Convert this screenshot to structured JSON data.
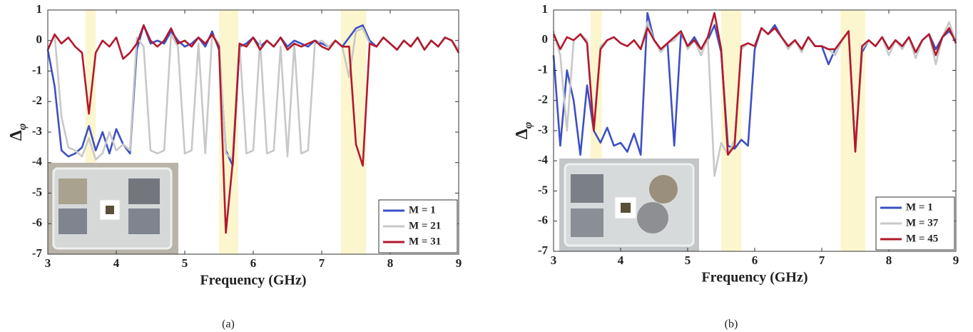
{
  "chart_data": [
    {
      "type": "line",
      "xlabel": "Frequency (GHz)",
      "ylabel": "Δ",
      "ylabel_sub": "φ",
      "caption": "(a)",
      "xlim": [
        3,
        9
      ],
      "ylim": [
        -7,
        1
      ],
      "xticks": [
        3,
        4,
        5,
        6,
        7,
        8,
        9
      ],
      "yticks": [
        -7,
        -6,
        -5,
        -4,
        -3,
        -2,
        -1,
        0,
        1
      ],
      "grid": false,
      "legend": "lower right",
      "band_color": "#fcf6cf",
      "highlight_bands": [
        [
          3.55,
          3.7
        ],
        [
          5.5,
          5.78
        ],
        [
          7.28,
          7.65
        ]
      ],
      "x": [
        3.0,
        3.1,
        3.2,
        3.3,
        3.4,
        3.5,
        3.6,
        3.7,
        3.8,
        3.9,
        4.0,
        4.1,
        4.2,
        4.3,
        4.4,
        4.5,
        4.6,
        4.7,
        4.8,
        4.9,
        5.0,
        5.1,
        5.2,
        5.3,
        5.4,
        5.5,
        5.6,
        5.7,
        5.8,
        5.9,
        6.0,
        6.1,
        6.2,
        6.3,
        6.4,
        6.5,
        6.6,
        6.7,
        6.8,
        6.9,
        7.0,
        7.1,
        7.2,
        7.3,
        7.4,
        7.5,
        7.6,
        7.7,
        7.8,
        7.9,
        8.0,
        8.1,
        8.2,
        8.3,
        8.4,
        8.5,
        8.6,
        8.7,
        8.8,
        8.9,
        9.0
      ],
      "series": [
        {
          "name": "M = 1",
          "color": "#3d50c3",
          "values": [
            -0.3,
            -1.5,
            -3.6,
            -3.8,
            -3.7,
            -3.5,
            -2.8,
            -3.6,
            -3.0,
            -3.7,
            -2.9,
            -3.4,
            -3.7,
            -0.3,
            0.5,
            -0.1,
            0.0,
            -0.1,
            0.3,
            0.0,
            -0.2,
            -0.1,
            0.1,
            -0.2,
            0.3,
            -0.3,
            -3.6,
            -4.1,
            -0.2,
            -0.1,
            0.1,
            -0.2,
            0.0,
            -0.2,
            0.1,
            -0.2,
            0.0,
            -0.1,
            -0.2,
            0.0,
            -0.1,
            -0.2,
            0.0,
            -0.2,
            0.1,
            0.4,
            0.5,
            0.0,
            -0.2,
            0.1,
            -0.1,
            -0.3,
            0.0,
            -0.2,
            0.1,
            -0.3,
            0.0,
            -0.2,
            0.1,
            0.0,
            -0.3
          ]
        },
        {
          "name": "M = 21",
          "color": "#c8c8c8",
          "values": [
            -0.3,
            0.2,
            -2.5,
            -3.5,
            -3.6,
            -3.8,
            -3.2,
            -3.9,
            -3.7,
            -3.0,
            -3.6,
            -3.4,
            -3.6,
            0.1,
            -0.2,
            -3.6,
            -3.7,
            -3.6,
            0.2,
            -0.2,
            -3.7,
            -3.6,
            -0.1,
            -3.7,
            0.2,
            -0.1,
            -3.7,
            -3.9,
            -0.1,
            -3.7,
            -3.6,
            0.0,
            -3.7,
            -3.6,
            -0.2,
            -3.8,
            -0.1,
            -3.7,
            -3.6,
            -0.1,
            0.0,
            -0.2,
            0.0,
            -0.2,
            -1.2,
            0.3,
            0.4,
            -0.1,
            -0.2,
            0.1,
            -0.1,
            -0.3,
            0.0,
            -0.2,
            0.1,
            -0.3,
            0.0,
            -0.2,
            0.1,
            0.0,
            -0.3
          ]
        },
        {
          "name": "M = 31",
          "color": "#b3182d",
          "values": [
            -0.3,
            0.2,
            -0.1,
            0.1,
            -0.2,
            -0.4,
            -2.4,
            -0.4,
            0.0,
            -0.2,
            0.1,
            -0.6,
            -0.4,
            -0.1,
            0.5,
            0.0,
            -0.2,
            0.0,
            0.4,
            -0.1,
            0.0,
            -0.2,
            0.1,
            -0.1,
            0.2,
            -0.2,
            -6.3,
            -4.0,
            -0.1,
            -0.2,
            0.1,
            -0.3,
            0.0,
            -0.2,
            0.1,
            -0.3,
            -0.1,
            -0.2,
            -0.1,
            0.0,
            -0.2,
            -0.3,
            0.0,
            -0.2,
            -0.2,
            -3.4,
            -4.1,
            -0.1,
            -0.2,
            0.1,
            -0.1,
            -0.3,
            0.0,
            -0.2,
            0.1,
            -0.3,
            0.0,
            -0.2,
            0.1,
            0.0,
            -0.4
          ]
        }
      ]
    },
    {
      "type": "line",
      "xlabel": "Frequency (GHz)",
      "ylabel": "Δ",
      "ylabel_sub": "φ",
      "caption": "(b)",
      "xlim": [
        3,
        9
      ],
      "ylim": [
        -7,
        1
      ],
      "xticks": [
        3,
        4,
        5,
        6,
        7,
        8,
        9
      ],
      "yticks": [
        -7,
        -6,
        -5,
        -4,
        -3,
        -2,
        -1,
        0,
        1
      ],
      "grid": false,
      "legend": "lower right",
      "band_color": "#fcf6cf",
      "highlight_bands": [
        [
          3.55,
          3.72
        ],
        [
          5.5,
          5.8
        ],
        [
          7.28,
          7.65
        ]
      ],
      "x": [
        3.0,
        3.1,
        3.2,
        3.3,
        3.4,
        3.5,
        3.6,
        3.7,
        3.8,
        3.9,
        4.0,
        4.1,
        4.2,
        4.3,
        4.4,
        4.5,
        4.6,
        4.7,
        4.8,
        4.9,
        5.0,
        5.1,
        5.2,
        5.3,
        5.4,
        5.5,
        5.6,
        5.7,
        5.8,
        5.9,
        6.0,
        6.1,
        6.2,
        6.3,
        6.4,
        6.5,
        6.6,
        6.7,
        6.8,
        6.9,
        7.0,
        7.1,
        7.2,
        7.3,
        7.4,
        7.5,
        7.6,
        7.7,
        7.8,
        7.9,
        8.0,
        8.1,
        8.2,
        8.3,
        8.4,
        8.5,
        8.6,
        8.7,
        8.8,
        8.9,
        9.0
      ],
      "series": [
        {
          "name": "M = 1",
          "color": "#3d50c3",
          "values": [
            -0.5,
            -3.5,
            -1.0,
            -2.0,
            -3.8,
            -1.5,
            -3.0,
            -3.4,
            -2.9,
            -3.5,
            -3.4,
            -3.7,
            -3.1,
            -3.8,
            0.9,
            0.0,
            -0.3,
            -0.1,
            -3.5,
            0.2,
            -0.2,
            0.1,
            -0.3,
            0.0,
            0.5,
            -0.4,
            -3.5,
            -3.6,
            -3.3,
            -3.5,
            -0.3,
            0.4,
            0.2,
            0.5,
            0.1,
            -0.2,
            0.0,
            -0.3,
            0.1,
            -0.2,
            -0.2,
            -0.8,
            -0.3,
            0.0,
            0.3,
            -3.6,
            -0.4,
            0.0,
            -0.2,
            0.1,
            -0.3,
            0.0,
            -0.2,
            0.1,
            -0.4,
            0.0,
            0.2,
            -0.3,
            0.1,
            0.3,
            0.0
          ]
        },
        {
          "name": "M = 37",
          "color": "#c8c8c8",
          "values": [
            0.3,
            -0.5,
            -3.0,
            0.0,
            0.2,
            0.0,
            -2.9,
            -0.2,
            0.0,
            0.1,
            -0.1,
            -0.2,
            0.0,
            -0.3,
            0.6,
            0.0,
            -0.4,
            -0.1,
            0.0,
            0.3,
            -0.3,
            0.0,
            -0.5,
            0.1,
            -4.5,
            -3.4,
            -3.8,
            -3.3,
            -0.3,
            -0.1,
            -0.2,
            0.4,
            0.2,
            0.4,
            0.1,
            -0.3,
            0.0,
            -0.4,
            0.1,
            -0.2,
            -0.2,
            -0.3,
            -0.5,
            0.0,
            0.3,
            -3.6,
            -0.3,
            0.0,
            -0.2,
            0.1,
            -0.5,
            0.0,
            -0.3,
            0.1,
            -0.6,
            0.0,
            0.2,
            -0.8,
            0.1,
            0.6,
            -0.1
          ]
        },
        {
          "name": "M = 45",
          "color": "#b3182d",
          "values": [
            0.2,
            -0.3,
            0.1,
            0.0,
            0.2,
            -0.1,
            -3.0,
            -0.3,
            0.0,
            0.1,
            -0.1,
            -0.2,
            0.0,
            -0.3,
            0.4,
            0.0,
            -0.3,
            -0.1,
            0.1,
            0.3,
            -0.2,
            0.0,
            -0.3,
            0.1,
            0.9,
            -0.3,
            -3.8,
            -3.5,
            -0.2,
            -0.1,
            -0.2,
            0.4,
            0.2,
            0.4,
            0.1,
            -0.2,
            0.0,
            -0.3,
            0.1,
            -0.2,
            -0.2,
            -0.3,
            -0.3,
            0.0,
            0.3,
            -3.7,
            -0.2,
            0.0,
            -0.2,
            0.1,
            -0.3,
            0.0,
            -0.2,
            0.1,
            -0.4,
            0.0,
            0.2,
            -0.5,
            0.1,
            0.4,
            -0.1
          ]
        }
      ]
    }
  ]
}
